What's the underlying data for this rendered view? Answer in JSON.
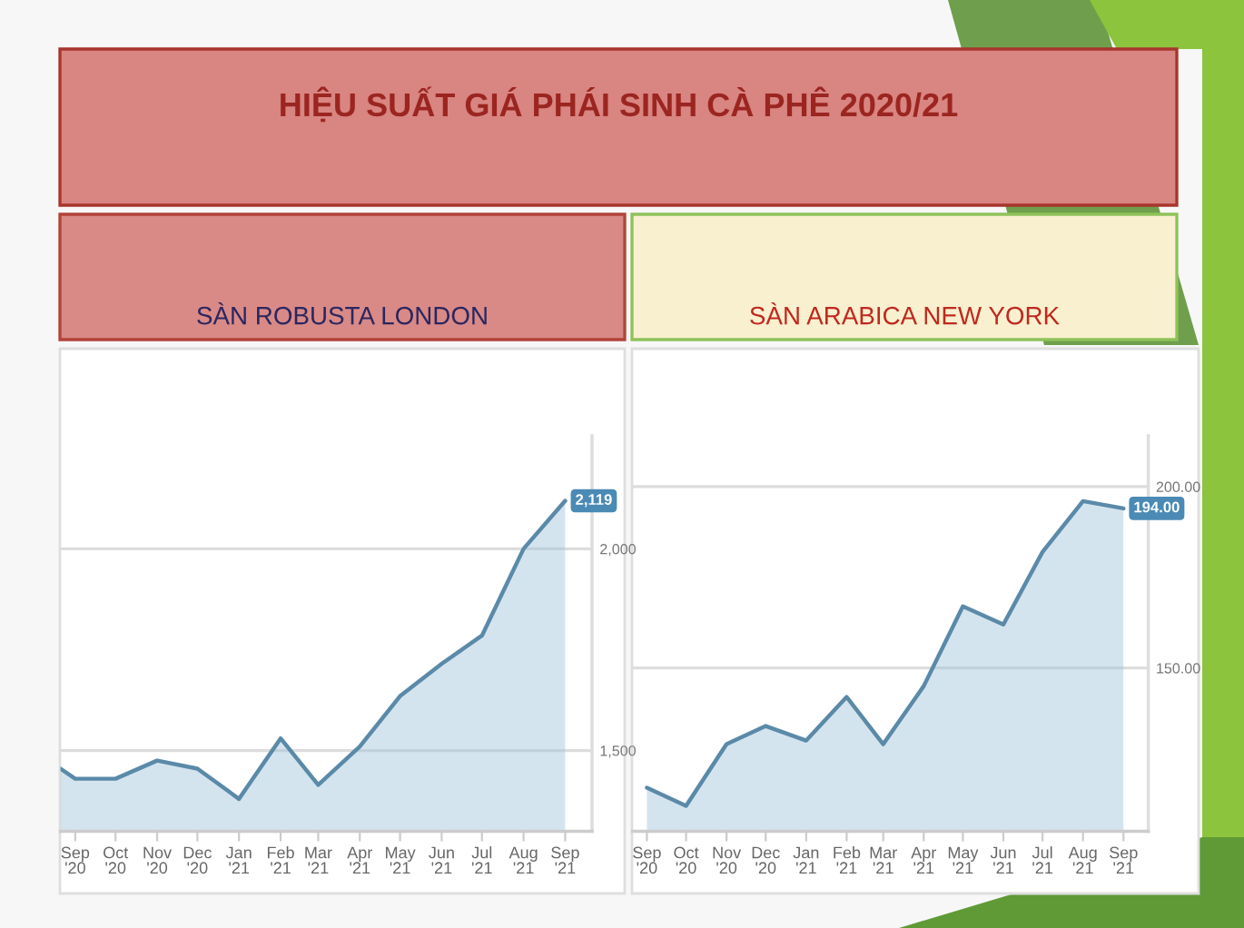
{
  "chart_data": [
    {
      "type": "other",
      "title": "HIỆU SUẤT GIÁ PHÁI SINH CÀ PHÊ 2020/21"
    },
    {
      "type": "area",
      "title": "SÀN ROBUSTA LONDON",
      "x": [
        "2020-08-21",
        "2020-09",
        "2020-10",
        "2020-11",
        "2020-12",
        "2021-01",
        "2021-02",
        "2021-03",
        "2021-04",
        "2021-05",
        "2021-06",
        "2021-07",
        "2021-08",
        "2021-09"
      ],
      "values": [
        1455,
        1430,
        1430,
        1475,
        1455,
        1380,
        1530,
        1415,
        1510,
        1635,
        1715,
        1785,
        2000,
        2119
      ],
      "value_labels": [
        null,
        null,
        null,
        null,
        null,
        null,
        null,
        null,
        null,
        null,
        null,
        null,
        null,
        "2,119"
      ],
      "color": "#5b8aa8",
      "xlim": [
        "2020-08-21",
        "2021-09-21"
      ],
      "xticks": [
        {
          "value": "2020-09",
          "label": "Sep '20"
        },
        {
          "value": "2020-10",
          "label": "Oct '20"
        },
        {
          "value": "2020-11",
          "label": "Nov '20"
        },
        {
          "value": "2020-12",
          "label": "Dec '20"
        },
        {
          "value": "2021-01",
          "label": "Jan '21"
        },
        {
          "value": "2021-02",
          "label": "Feb '21"
        },
        {
          "value": "2021-03",
          "label": "Mar '21"
        },
        {
          "value": "2021-04",
          "label": "Apr '21"
        },
        {
          "value": "2021-05",
          "label": "May '21"
        },
        {
          "value": "2021-06",
          "label": "Jun '21"
        },
        {
          "value": "2021-07",
          "label": "Jul '21"
        },
        {
          "value": "2021-08",
          "label": "Aug '21"
        },
        {
          "value": "2021-09",
          "label": "Sep '21"
        }
      ],
      "ylim": [
        1300,
        2280
      ],
      "yticks": [
        {
          "value": 1500,
          "label": "1,500"
        },
        {
          "value": 2000,
          "label": "2,000"
        }
      ],
      "grid": "y"
    },
    {
      "type": "area",
      "title": "SÀN ARABICA NEW YORK",
      "x": [
        "2020-09",
        "2020-10",
        "2020-11",
        "2020-12",
        "2021-01",
        "2021-02",
        "2021-03",
        "2021-04",
        "2021-05",
        "2021-06",
        "2021-07",
        "2021-08",
        "2021-09"
      ],
      "values": [
        117,
        112,
        129,
        134,
        130,
        142,
        129,
        145,
        167,
        162,
        182,
        196,
        194
      ],
      "value_labels": [
        null,
        null,
        null,
        null,
        null,
        null,
        null,
        null,
        null,
        null,
        null,
        null,
        "194.00"
      ],
      "color": "#5b8aa8",
      "xlim": [
        "2020-08-21",
        "2021-09-20"
      ],
      "xticks": [
        {
          "value": "2020-09",
          "label": "Sep '20"
        },
        {
          "value": "2020-10",
          "label": "Oct '20"
        },
        {
          "value": "2020-11",
          "label": "Nov '20"
        },
        {
          "value": "2020-12",
          "label": "Dec '20"
        },
        {
          "value": "2021-01",
          "label": "Jan '21"
        },
        {
          "value": "2021-02",
          "label": "Feb '21"
        },
        {
          "value": "2021-03",
          "label": "Mar '21"
        },
        {
          "value": "2021-04",
          "label": "Apr '21"
        },
        {
          "value": "2021-05",
          "label": "May '21"
        },
        {
          "value": "2021-06",
          "label": "Jun '21"
        },
        {
          "value": "2021-07",
          "label": "Jul '21"
        },
        {
          "value": "2021-08",
          "label": "Aug '21"
        },
        {
          "value": "2021-09",
          "label": "Sep '21"
        }
      ],
      "ylim": [
        105,
        214
      ],
      "yticks": [
        {
          "value": 150,
          "label": "150.00"
        },
        {
          "value": 200,
          "label": "200.00"
        }
      ],
      "grid": "y"
    }
  ]
}
